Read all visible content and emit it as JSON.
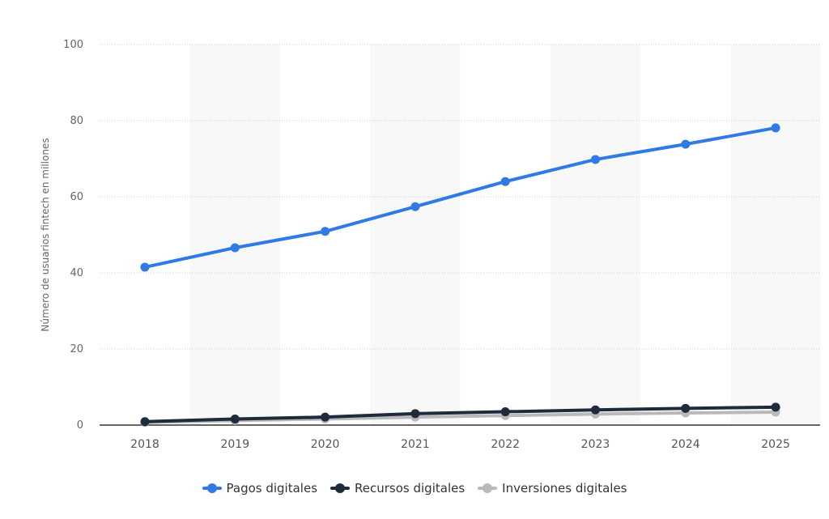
{
  "chart_data": {
    "type": "line",
    "title": "",
    "xlabel": "",
    "ylabel": "Número de usuarios fintech en millones",
    "ylim": [
      0,
      100
    ],
    "yticks": [
      0,
      20,
      40,
      60,
      80,
      100
    ],
    "ytick_labels": [
      "0",
      "20",
      "40",
      "60",
      "80",
      "100"
    ],
    "grid": true,
    "legend_position": "bottom",
    "categories": [
      "2018",
      "2019",
      "2020",
      "2021",
      "2022",
      "2023",
      "2024",
      "2025"
    ],
    "series": [
      {
        "name": "Pagos digitales",
        "color": "#2f7ae5",
        "values": [
          41.5,
          46.6,
          50.9,
          57.4,
          64.0,
          69.8,
          73.8,
          78.1
        ]
      },
      {
        "name": "Recursos digitales",
        "color": "#1e2b3c",
        "values": [
          0.9,
          1.6,
          2.1,
          3.0,
          3.5,
          4.0,
          4.4,
          4.7
        ]
      },
      {
        "name": "Inversiones digitales",
        "color": "#b9b9b9",
        "values": [
          0.7,
          1.2,
          1.6,
          2.1,
          2.5,
          2.9,
          3.2,
          3.4
        ]
      }
    ]
  },
  "legend": {
    "items": [
      {
        "label": "Pagos digitales",
        "color": "#2f7ae5"
      },
      {
        "label": "Recursos digitales",
        "color": "#1e2b3c"
      },
      {
        "label": "Inversiones digitales",
        "color": "#b9b9b9"
      }
    ]
  },
  "colors": {
    "band": "#f8f8f8",
    "grid": "#cccccc",
    "axis": "#333333",
    "tick_text": "#666666"
  }
}
